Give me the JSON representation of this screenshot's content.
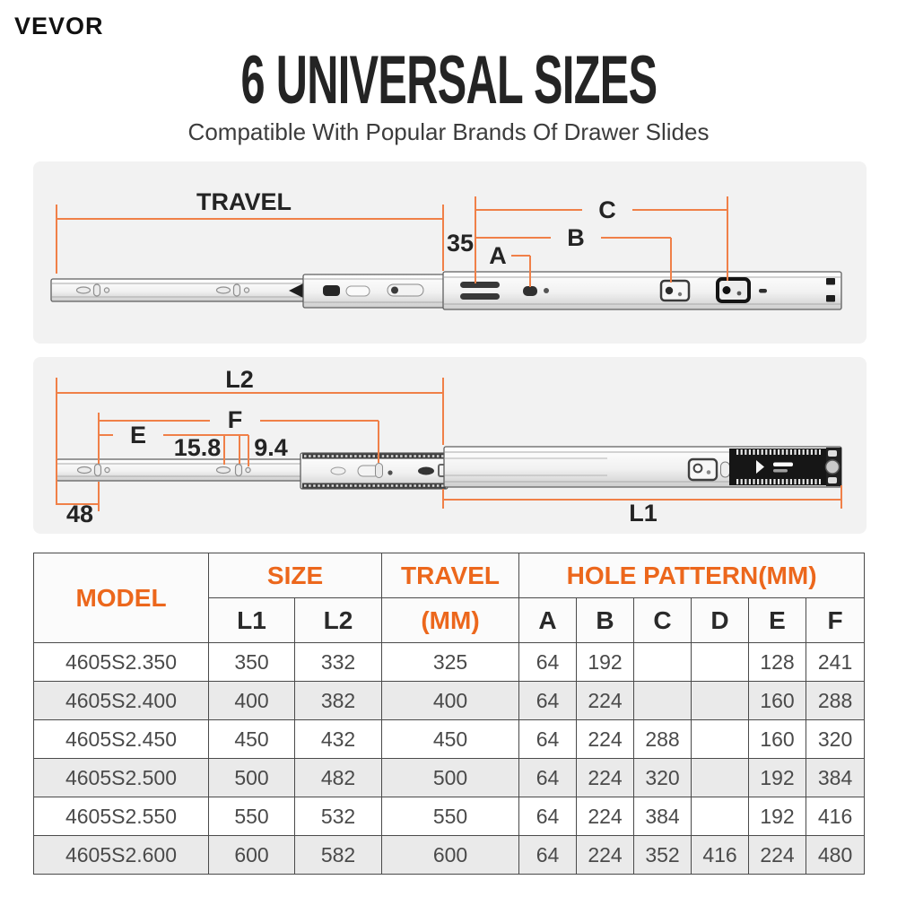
{
  "brand": {
    "logo": "VEVOR"
  },
  "header": {
    "title": "6 UNIVERSAL SIZES",
    "subtitle": "Compatible With Popular Brands Of Drawer Slides"
  },
  "colors": {
    "accent_orange": "#ec671c",
    "dimension_line": "#f08048",
    "panel_bg": "#f2f2f2",
    "table_border": "#4a4a4a",
    "zebra_row": "#eaeaea",
    "title_text": "#242424",
    "body_text": "#4a4a4a"
  },
  "diagram_top": {
    "travel_label": "TRAVEL",
    "dim_35": "35",
    "label_a": "A",
    "label_b": "B",
    "label_c": "C"
  },
  "diagram_bottom": {
    "label_l2": "L2",
    "label_f": "F",
    "label_e": "E",
    "dim_15_8": "15.8",
    "dim_9_4": "9.4",
    "dim_48": "48",
    "label_l1": "L1"
  },
  "table": {
    "header": {
      "model": "MODEL",
      "size": "SIZE",
      "travel": "TRAVEL",
      "hole_pattern": "HOLE PATTERN(MM)"
    },
    "subheader": [
      "L1",
      "L2",
      "(MM)",
      "A",
      "B",
      "C",
      "D",
      "E",
      "F"
    ],
    "rows": [
      [
        "4605S2.350",
        "350",
        "332",
        "325",
        "64",
        "192",
        "",
        "",
        "128",
        "241"
      ],
      [
        "4605S2.400",
        "400",
        "382",
        "400",
        "64",
        "224",
        "",
        "",
        "160",
        "288"
      ],
      [
        "4605S2.450",
        "450",
        "432",
        "450",
        "64",
        "224",
        "288",
        "",
        "160",
        "320"
      ],
      [
        "4605S2.500",
        "500",
        "482",
        "500",
        "64",
        "224",
        "320",
        "",
        "192",
        "384"
      ],
      [
        "4605S2.550",
        "550",
        "532",
        "550",
        "64",
        "224",
        "384",
        "",
        "192",
        "416"
      ],
      [
        "4605S2.600",
        "600",
        "582",
        "600",
        "64",
        "224",
        "352",
        "416",
        "224",
        "480"
      ]
    ]
  }
}
